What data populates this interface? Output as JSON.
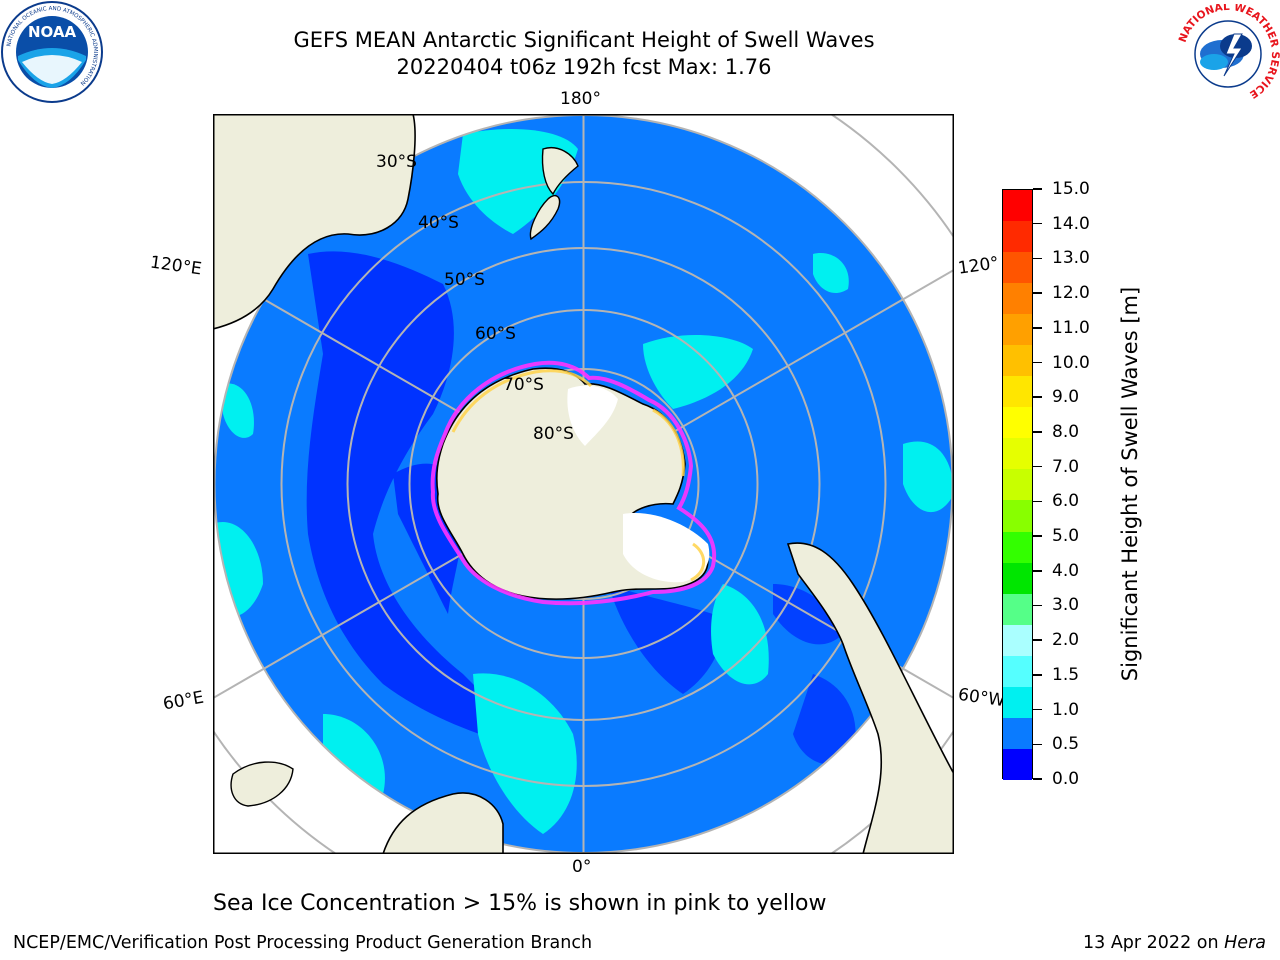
{
  "header": {
    "title_line1": "GEFS MEAN Antarctic Significant Height of Swell Waves",
    "title_line2": "20220404 t06z 192h fcst   Max: 1.76"
  },
  "logos": {
    "noaa_text": "NOAA",
    "noaa_ring_text": "NATIONAL OCEANIC AND ATMOSPHERIC ADMINISTRATION",
    "noaa_ring_text_bottom": "U.S. DEPARTMENT OF COMMERCE",
    "nws_ring_text": "NATIONAL WEATHER SERVICE"
  },
  "map": {
    "projection": "south polar stereographic",
    "longitude_labels": {
      "top": "180°",
      "bottom": "0°",
      "upper_left": "120°E",
      "lower_left": "60°E",
      "upper_right": "120°",
      "lower_right": "60°W"
    },
    "latitude_labels": [
      "30°S",
      "40°S",
      "50°S",
      "60°S",
      "70°S",
      "80°S"
    ],
    "colors": {
      "ocean": "#0a7bff",
      "ocean_dark": "#0033ff",
      "ocean_cyan": "#00f0f0",
      "land": "#eeeedc",
      "ice": "#ffffff",
      "ice_edge": "#ff33ff",
      "grid": "#b4b4b4"
    }
  },
  "colorbar": {
    "title": "Significant Height of Swell Waves [m]",
    "ticks": [
      "15.0",
      "14.0",
      "13.0",
      "12.0",
      "11.0",
      "10.0",
      "9.0",
      "8.0",
      "7.0",
      "6.0",
      "5.0",
      "4.0",
      "3.0",
      "2.0",
      "1.5",
      "1.0",
      "0.5",
      "0.0"
    ],
    "colors": [
      "#ff0000",
      "#ff2a00",
      "#ff5500",
      "#ff8000",
      "#ffa000",
      "#ffc000",
      "#ffe600",
      "#ffff00",
      "#e6ff00",
      "#c8ff00",
      "#88ff00",
      "#33ff00",
      "#00e600",
      "#55ff88",
      "#aaffff",
      "#55ffff",
      "#00f0f0",
      "#0a7bff",
      "#0000ff"
    ]
  },
  "note": "Sea Ice Concentration > 15% is shown in pink to yellow",
  "footer": {
    "left": "NCEP/EMC/Verification Post Processing Product Generation Branch",
    "right_date": "13 Apr 2022 on ",
    "right_machine": "Hera"
  }
}
